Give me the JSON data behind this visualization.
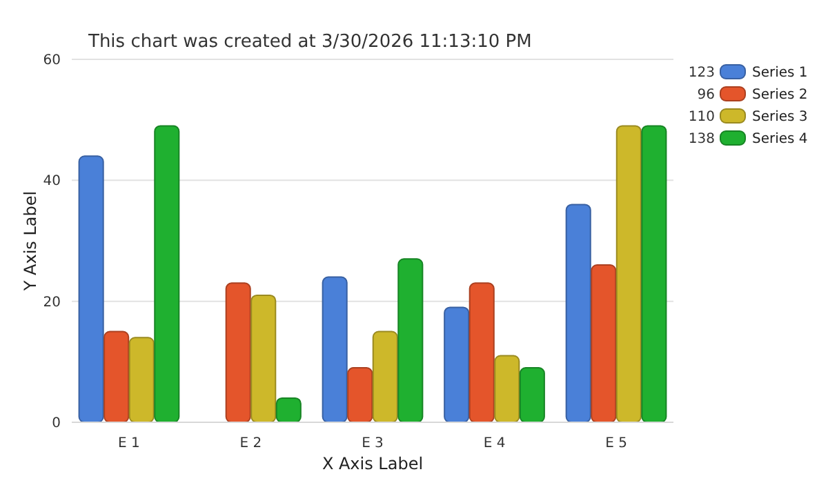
{
  "chart_data": {
    "type": "bar",
    "title": "This chart was created at 3/30/2026 11:13:10 PM",
    "xlabel": "X Axis Label",
    "ylabel": "Y Axis Label",
    "categories": [
      "E 1",
      "E 2",
      "E 3",
      "E 4",
      "E 5"
    ],
    "series": [
      {
        "name": "Series 1",
        "color": "#4a80d8",
        "values": [
          44,
          0,
          24,
          19,
          36
        ]
      },
      {
        "name": "Series 2",
        "color": "#e4552b",
        "values": [
          15,
          23,
          9,
          23,
          26
        ]
      },
      {
        "name": "Series 3",
        "color": "#cdb82a",
        "values": [
          14,
          21,
          15,
          11,
          49
        ]
      },
      {
        "name": "Series 4",
        "color": "#1fb030",
        "values": [
          49,
          4,
          27,
          9,
          49
        ]
      }
    ],
    "annotations": [
      "123",
      "96",
      "110",
      "138"
    ],
    "ylim": [
      0,
      60
    ],
    "yticks": [
      0,
      20,
      40,
      60
    ],
    "grid": "y",
    "legend": "top right"
  }
}
